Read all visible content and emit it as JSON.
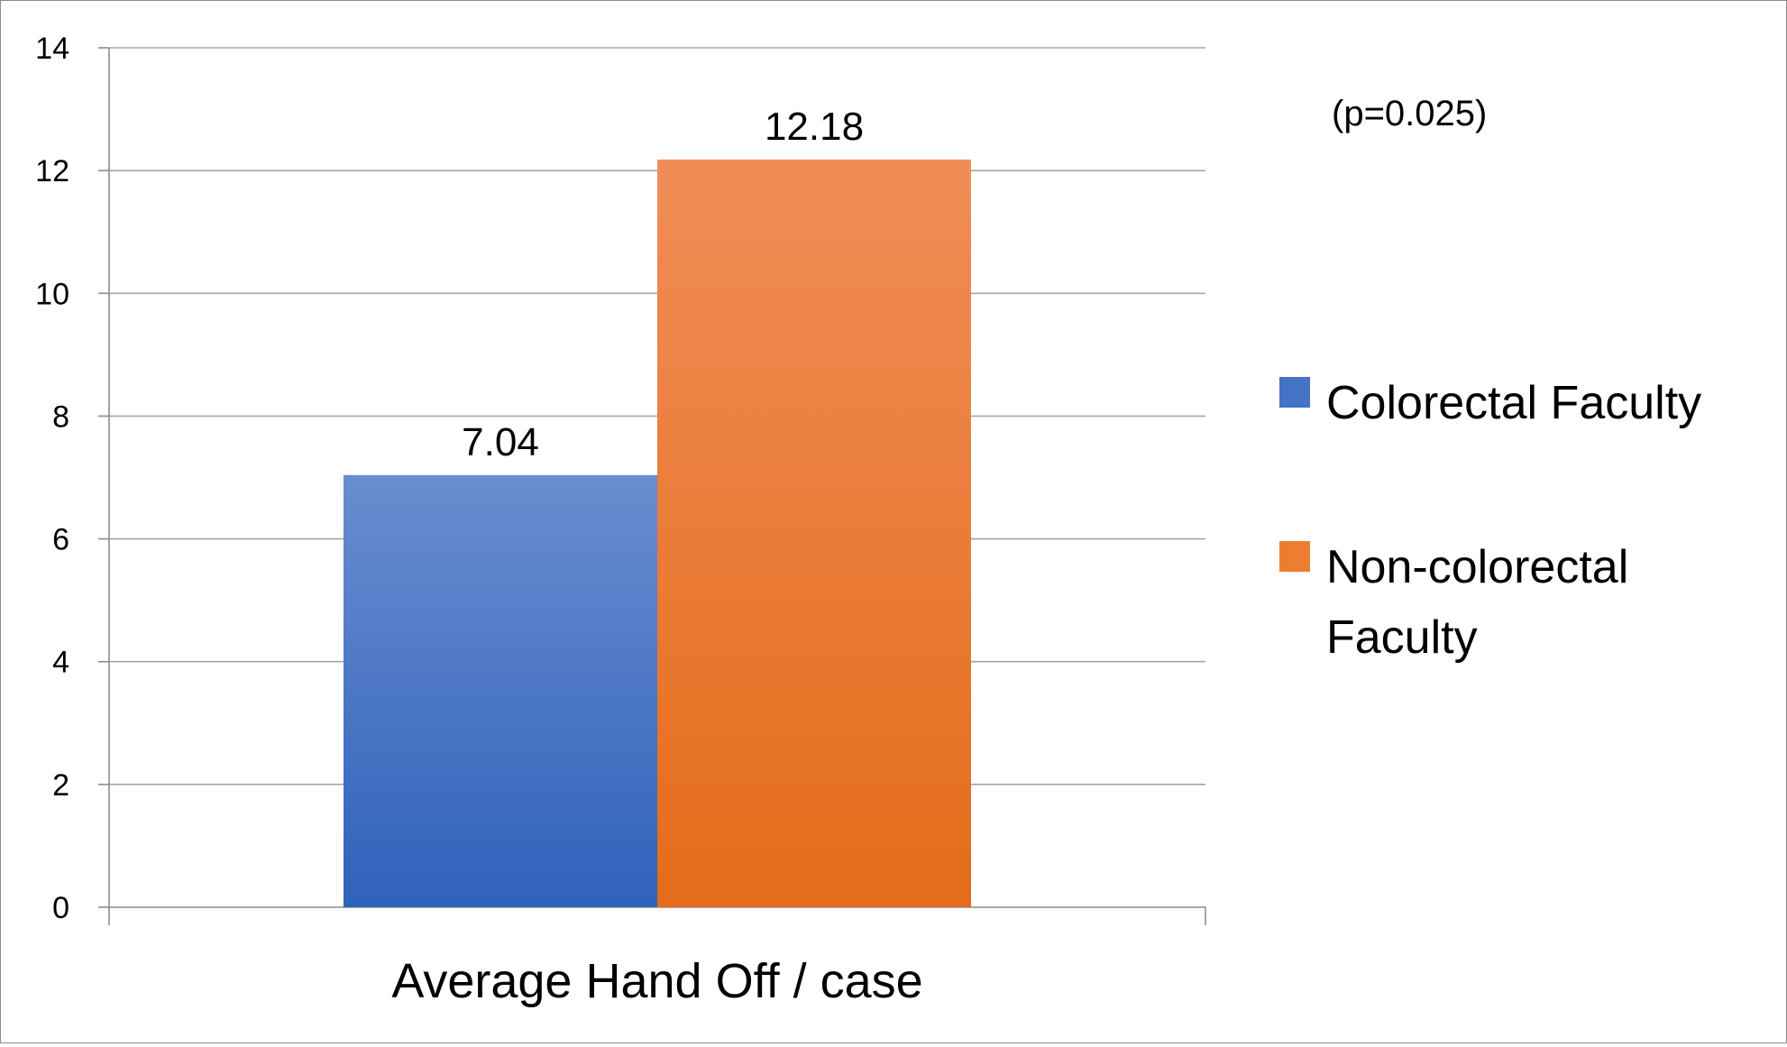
{
  "chart_data": {
    "type": "bar",
    "categories": [
      "Average Hand Off / case"
    ],
    "series": [
      {
        "name": "Colorectal Faculty",
        "values": [
          7.04
        ],
        "color": "#4472C4"
      },
      {
        "name": "Non-colorectal Faculty",
        "values": [
          12.18
        ],
        "color": "#ED7D31"
      }
    ],
    "data_labels": [
      "7.04",
      "12.18"
    ],
    "y_ticks": [
      "0",
      "2",
      "4",
      "6",
      "8",
      "10",
      "12",
      "14"
    ],
    "ylim": [
      0,
      14
    ],
    "grid": true,
    "annotation": "(p=0.025)",
    "legend_position": "right",
    "legend_lines": [
      [
        "Colorectal Faculty"
      ],
      [
        "Non-colorectal",
        "Faculty"
      ]
    ],
    "title": "",
    "xlabel": "",
    "ylabel": ""
  }
}
